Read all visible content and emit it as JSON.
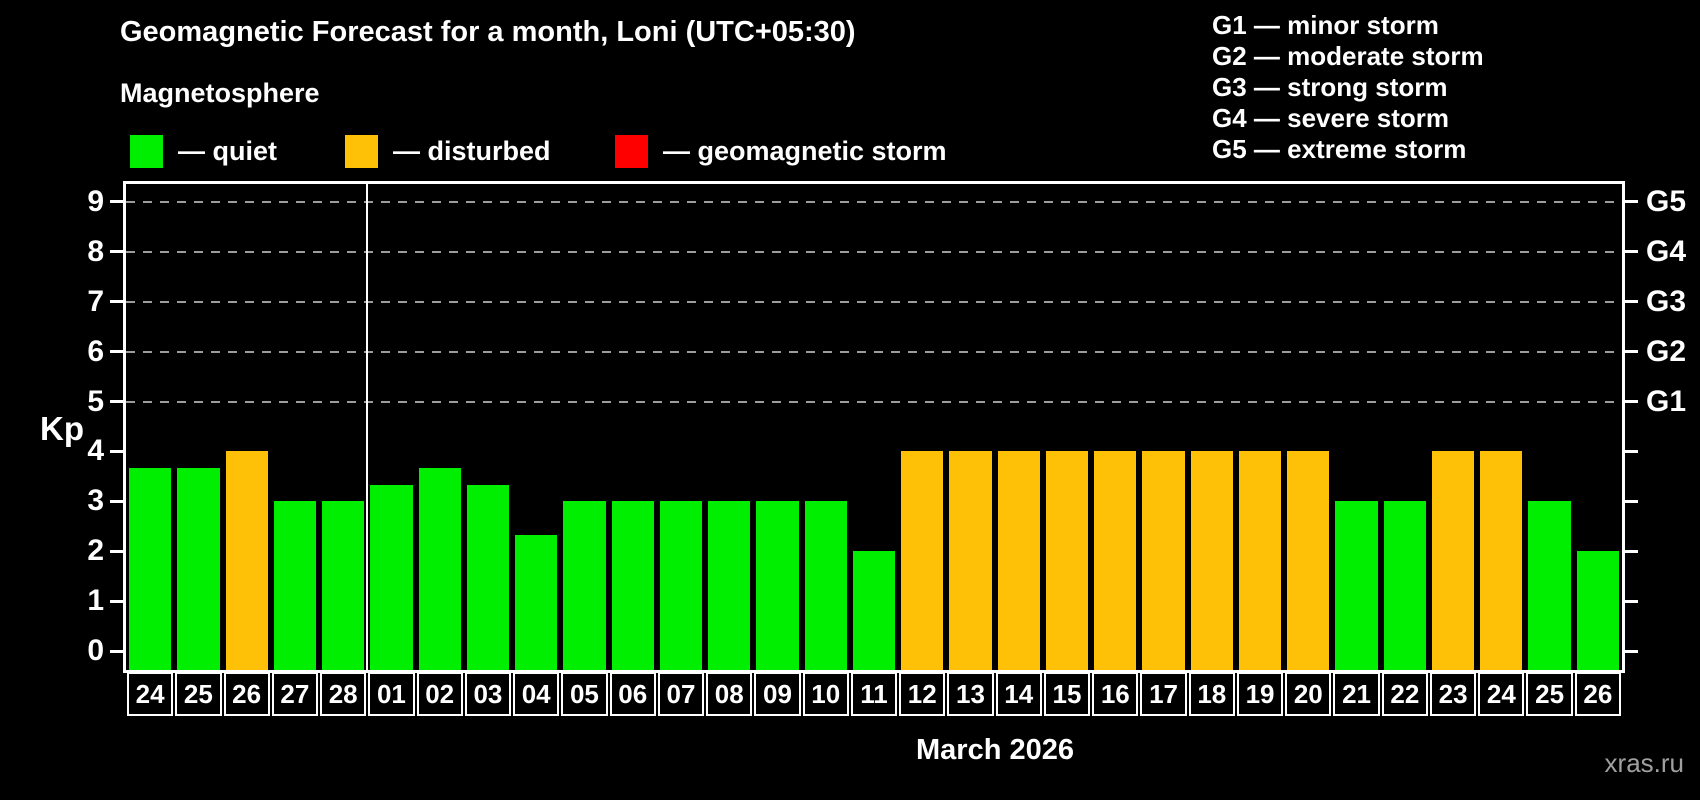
{
  "header": {
    "title": "Geomagnetic Forecast for a month, Loni (UTC+05:30)",
    "section_label": "Magnetosphere"
  },
  "legend": {
    "items": [
      {
        "label": "— quiet",
        "status": "quiet",
        "color": "#00ee00"
      },
      {
        "label": "— disturbed",
        "status": "disturbed",
        "color": "#ffc107"
      },
      {
        "label": "— geomagnetic storm",
        "status": "storm",
        "color": "#ff0000"
      }
    ]
  },
  "g_legend": {
    "lines": [
      "G1 — minor storm",
      "G2 — moderate storm",
      "G3 — strong storm",
      "G4 — severe storm",
      "G5 — extreme storm"
    ]
  },
  "footer": {
    "watermark": "xras.ru"
  },
  "chart_data": {
    "type": "bar",
    "title": "Geomagnetic Forecast for a month, Loni (UTC+05:30)",
    "ylabel": "Kp",
    "xlabel": "March 2026",
    "ylim": [
      0,
      9
    ],
    "yticks": [
      0,
      1,
      2,
      3,
      4,
      5,
      6,
      7,
      8,
      9
    ],
    "grid_levels": [
      5,
      6,
      7,
      8,
      9
    ],
    "grid_style": "dashed",
    "legend_position": "top",
    "right_axis": [
      {
        "label": "G1",
        "value": 5
      },
      {
        "label": "G2",
        "value": 6
      },
      {
        "label": "G3",
        "value": 7
      },
      {
        "label": "G4",
        "value": 8
      },
      {
        "label": "G5",
        "value": 9
      }
    ],
    "month_boundary_after_index": 4,
    "categories": [
      "24",
      "25",
      "26",
      "27",
      "28",
      "01",
      "02",
      "03",
      "04",
      "05",
      "06",
      "07",
      "08",
      "09",
      "10",
      "11",
      "12",
      "13",
      "14",
      "15",
      "16",
      "17",
      "18",
      "19",
      "20",
      "21",
      "22",
      "23",
      "24",
      "25",
      "26"
    ],
    "values": [
      3.67,
      3.67,
      4,
      3,
      3,
      3.33,
      3.67,
      3.33,
      2.33,
      3,
      3,
      3,
      3,
      3,
      3,
      2,
      4,
      4,
      4,
      4,
      4,
      4,
      4,
      4,
      4,
      3,
      3,
      4,
      4,
      3,
      2
    ],
    "statuses": [
      "quiet",
      "quiet",
      "disturbed",
      "quiet",
      "quiet",
      "quiet",
      "quiet",
      "quiet",
      "quiet",
      "quiet",
      "quiet",
      "quiet",
      "quiet",
      "quiet",
      "quiet",
      "quiet",
      "disturbed",
      "disturbed",
      "disturbed",
      "disturbed",
      "disturbed",
      "disturbed",
      "disturbed",
      "disturbed",
      "disturbed",
      "quiet",
      "quiet",
      "disturbed",
      "disturbed",
      "quiet",
      "quiet"
    ],
    "colors": {
      "quiet": "#00ee00",
      "disturbed": "#ffc107",
      "storm": "#ff0000"
    }
  }
}
